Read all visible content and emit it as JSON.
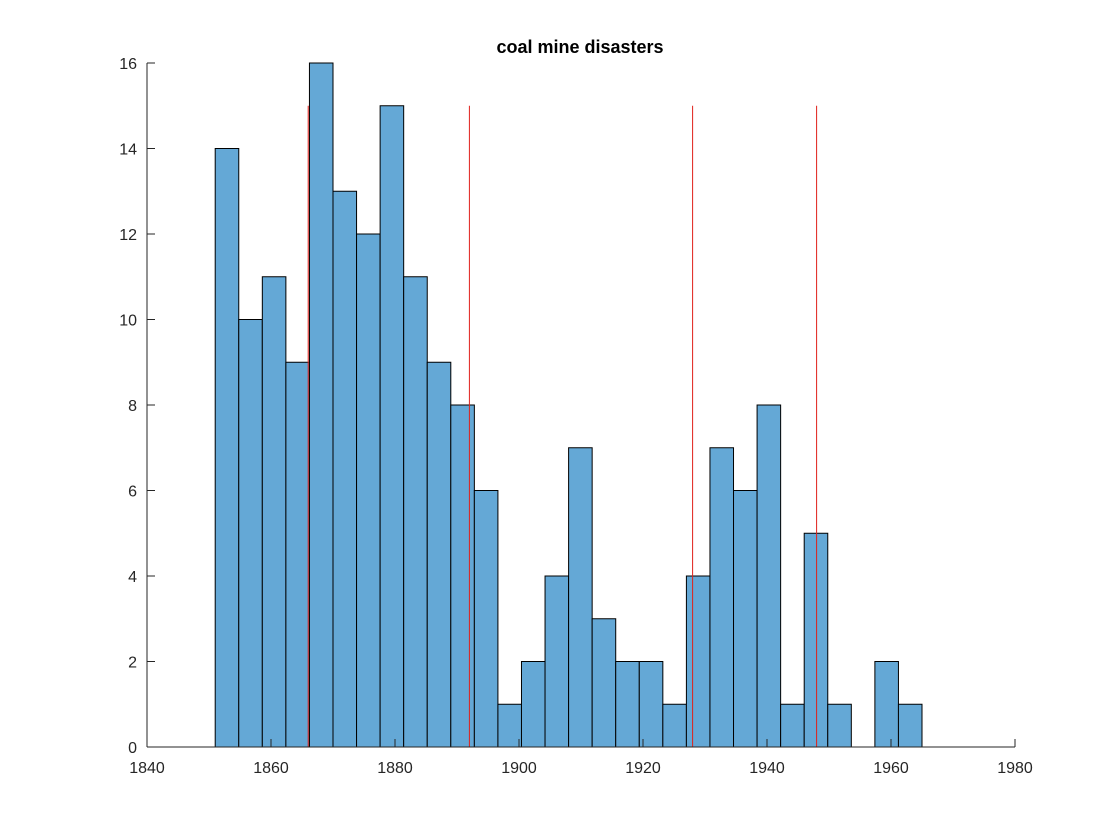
{
  "chart_data": {
    "type": "bar",
    "title": "coal mine disasters",
    "xlabel": "",
    "ylabel": "",
    "xlim": [
      1840,
      1980
    ],
    "ylim": [
      0,
      16
    ],
    "xticks": [
      1840,
      1860,
      1880,
      1900,
      1920,
      1940,
      1960,
      1980
    ],
    "yticks": [
      0,
      2,
      4,
      6,
      8,
      10,
      12,
      14,
      16
    ],
    "bin_width": 3.8,
    "bins": [
      {
        "x0": 1851.0,
        "value": 14
      },
      {
        "x0": 1854.8,
        "value": 10
      },
      {
        "x0": 1858.6,
        "value": 11
      },
      {
        "x0": 1862.4,
        "value": 9
      },
      {
        "x0": 1866.2,
        "value": 16
      },
      {
        "x0": 1870.0,
        "value": 13
      },
      {
        "x0": 1873.8,
        "value": 12
      },
      {
        "x0": 1877.6,
        "value": 15
      },
      {
        "x0": 1881.4,
        "value": 11
      },
      {
        "x0": 1885.2,
        "value": 9
      },
      {
        "x0": 1889.0,
        "value": 8
      },
      {
        "x0": 1892.8,
        "value": 6
      },
      {
        "x0": 1896.6,
        "value": 1
      },
      {
        "x0": 1900.4,
        "value": 2
      },
      {
        "x0": 1904.2,
        "value": 4
      },
      {
        "x0": 1908.0,
        "value": 7
      },
      {
        "x0": 1911.8,
        "value": 3
      },
      {
        "x0": 1915.6,
        "value": 2
      },
      {
        "x0": 1919.4,
        "value": 2
      },
      {
        "x0": 1923.2,
        "value": 1
      },
      {
        "x0": 1927.0,
        "value": 4
      },
      {
        "x0": 1930.8,
        "value": 7
      },
      {
        "x0": 1934.6,
        "value": 6
      },
      {
        "x0": 1938.4,
        "value": 8
      },
      {
        "x0": 1942.2,
        "value": 1
      },
      {
        "x0": 1946.0,
        "value": 5
      },
      {
        "x0": 1949.8,
        "value": 1
      },
      {
        "x0": 1953.6,
        "value": 0
      },
      {
        "x0": 1957.4,
        "value": 2
      },
      {
        "x0": 1961.2,
        "value": 1
      }
    ],
    "vertical_lines": [
      {
        "x": 1866,
        "y_top": 15
      },
      {
        "x": 1892,
        "y_top": 15
      },
      {
        "x": 1928,
        "y_top": 15
      },
      {
        "x": 1948,
        "y_top": 15
      }
    ],
    "bar_color": "#64a8d6",
    "line_color": "#e0201a",
    "grid": false,
    "legend": "none"
  }
}
